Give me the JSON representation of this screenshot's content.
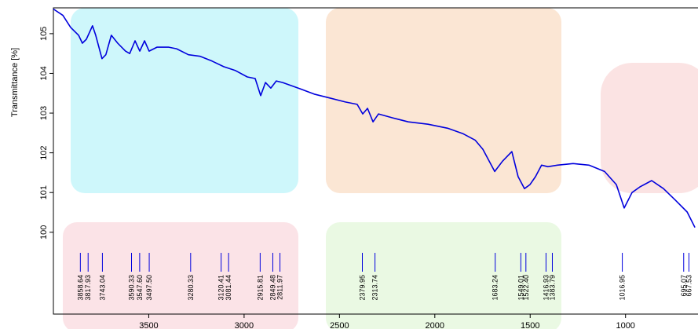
{
  "chart_data": {
    "type": "line",
    "y_label": "Transmittance [%]",
    "xlim": [
      4000,
      620
    ],
    "ylim": [
      97.94,
      105.65
    ],
    "xticks": [
      3500,
      3000,
      2500,
      2000,
      1500,
      1000
    ],
    "yticks": [
      100,
      101,
      102,
      103,
      104,
      105
    ],
    "series": [
      {
        "color": "#0000dd",
        "x": [
          4000,
          3950,
          3910,
          3868,
          3848,
          3827,
          3795,
          3778,
          3745,
          3725,
          3696,
          3663,
          3622,
          3600,
          3572,
          3547,
          3522,
          3498,
          3457,
          3395,
          3354,
          3292,
          3230,
          3168,
          3107,
          3045,
          2983,
          2942,
          2913,
          2888,
          2860,
          2831,
          2798,
          2716,
          2633,
          2551,
          2469,
          2407,
          2378,
          2353,
          2324,
          2295,
          2221,
          2139,
          2036,
          1933,
          1851,
          1789,
          1748,
          1686,
          1645,
          1596,
          1563,
          1530,
          1501,
          1472,
          1440,
          1407,
          1357,
          1275,
          1192,
          1110,
          1048,
          1007,
          966,
          925,
          863,
          801,
          739,
          677,
          636
        ],
        "values": [
          105.62,
          105.46,
          105.16,
          104.96,
          104.76,
          104.86,
          105.2,
          104.96,
          104.37,
          104.47,
          104.96,
          104.76,
          104.56,
          104.5,
          104.82,
          104.56,
          104.82,
          104.56,
          104.66,
          104.66,
          104.62,
          104.47,
          104.43,
          104.31,
          104.17,
          104.07,
          103.91,
          103.87,
          103.44,
          103.77,
          103.63,
          103.81,
          103.77,
          103.63,
          103.48,
          103.38,
          103.28,
          103.22,
          102.98,
          103.12,
          102.78,
          102.98,
          102.88,
          102.78,
          102.72,
          102.62,
          102.48,
          102.32,
          102.09,
          101.53,
          101.79,
          102.03,
          101.4,
          101.1,
          101.2,
          101.4,
          101.69,
          101.65,
          101.69,
          101.73,
          101.69,
          101.53,
          101.2,
          100.61,
          101.0,
          101.14,
          101.3,
          101.1,
          100.81,
          100.51,
          100.12
        ]
      }
    ],
    "peaks": [
      {
        "value": 3858.64,
        "label": "3858.64"
      },
      {
        "value": 3817.93,
        "label": "3817.93"
      },
      {
        "value": 3743.04,
        "label": "3743.04"
      },
      {
        "value": 3590.33,
        "label": "3590.33"
      },
      {
        "value": 3547.6,
        "label": "3547.60"
      },
      {
        "value": 3497.5,
        "label": "3497.50"
      },
      {
        "value": 3280.33,
        "label": "3280.33"
      },
      {
        "value": 3120.41,
        "label": "3120.41"
      },
      {
        "value": 3081.44,
        "label": "3081.44"
      },
      {
        "value": 2915.81,
        "label": "2915.81"
      },
      {
        "value": 2849.48,
        "label": "2849.48"
      },
      {
        "value": 2811.97,
        "label": "2811.97"
      },
      {
        "value": 2379.95,
        "label": "2379.95"
      },
      {
        "value": 2313.74,
        "label": "2313.74"
      },
      {
        "value": 1683.24,
        "label": "1683.24"
      },
      {
        "value": 1549.01,
        "label": "1549.01"
      },
      {
        "value": 1522.4,
        "label": "1522.40"
      },
      {
        "value": 1416.93,
        "label": "1416.93"
      },
      {
        "value": 1383.79,
        "label": "1383.79"
      },
      {
        "value": 1016.95,
        "label": "1016.95"
      },
      {
        "value": 695.07,
        "label": "695.07"
      },
      {
        "value": 667.53,
        "label": "667.53"
      }
    ]
  }
}
